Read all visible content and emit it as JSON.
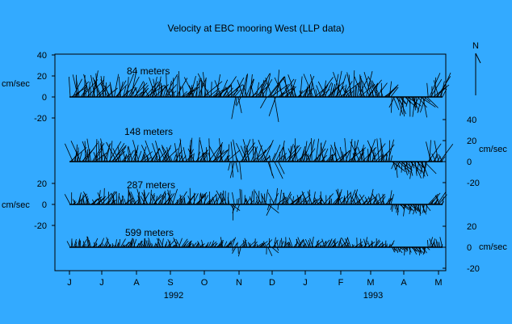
{
  "chart_data": {
    "type": "line",
    "title": "Velocity at EBC mooring West (LLP data)",
    "unit_label": "cm/sec",
    "north_label": "N",
    "x_tick_labels": [
      "J",
      "J",
      "A",
      "S",
      "O",
      "N",
      "D",
      "J",
      "F",
      "M",
      "A",
      "M"
    ],
    "year_labels": [
      "1992",
      "1993"
    ],
    "series": [
      {
        "name": "84 meters",
        "tick_labels": [
          "40",
          "20",
          "0",
          "-20"
        ]
      },
      {
        "name": "148 meters",
        "tick_labels": [
          "40",
          "20",
          "0",
          "-20"
        ]
      },
      {
        "name": "287 meters",
        "tick_labels": [
          "20",
          "0",
          "-20"
        ]
      },
      {
        "name": "599 meters",
        "tick_labels": [
          "20",
          "0",
          "-20"
        ]
      }
    ],
    "ylim": [
      -20,
      40
    ]
  }
}
